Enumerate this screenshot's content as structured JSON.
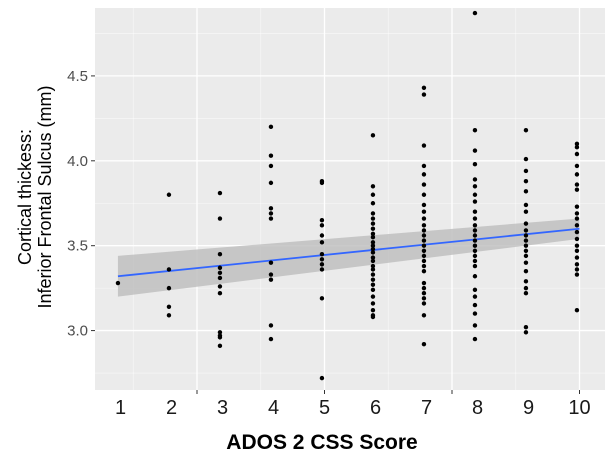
{
  "chart_data": {
    "type": "scatter",
    "title": "",
    "xlabel": "ADOS 2 CSS Score",
    "ylabel_lines": [
      "Cortical thickess:",
      "Inferior Frontal Sulcus (mm)"
    ],
    "xlim": [
      0.5,
      10.5
    ],
    "ylim": [
      2.65,
      4.9
    ],
    "x_ticks": [
      1,
      2,
      3,
      4,
      5,
      6,
      7,
      8,
      9,
      10
    ],
    "y_ticks": [
      "3.0",
      "3.5",
      "4.0",
      "4.5"
    ],
    "grid": true,
    "colors": {
      "panel": "#ebebeb",
      "grid": "#ffffff",
      "points": "#000000",
      "fit_line": "#3366ff",
      "confidence_band": "#bdbdbd"
    },
    "fit": {
      "x": [
        0.95,
        10.0
      ],
      "y": [
        3.32,
        3.6
      ],
      "ci_lower": [
        3.2,
        3.54
      ],
      "ci_upper": [
        3.44,
        3.66
      ]
    },
    "series": [
      {
        "points": [
          [
            0.95,
            3.28
          ],
          [
            1.95,
            3.8
          ],
          [
            1.95,
            3.36
          ],
          [
            1.95,
            3.25
          ],
          [
            1.95,
            3.14
          ],
          [
            1.95,
            3.09
          ],
          [
            2.95,
            3.81
          ],
          [
            2.95,
            3.66
          ],
          [
            2.95,
            3.45
          ],
          [
            2.95,
            3.37
          ],
          [
            2.95,
            3.34
          ],
          [
            2.95,
            3.31
          ],
          [
            2.95,
            3.26
          ],
          [
            2.95,
            3.22
          ],
          [
            2.95,
            2.99
          ],
          [
            2.95,
            2.97
          ],
          [
            2.95,
            2.96
          ],
          [
            2.95,
            2.91
          ],
          [
            3.95,
            4.2
          ],
          [
            3.95,
            4.03
          ],
          [
            3.95,
            3.97
          ],
          [
            3.95,
            3.87
          ],
          [
            3.95,
            3.72
          ],
          [
            3.95,
            3.69
          ],
          [
            3.95,
            3.66
          ],
          [
            3.95,
            3.4
          ],
          [
            3.95,
            3.33
          ],
          [
            3.95,
            3.3
          ],
          [
            3.95,
            3.03
          ],
          [
            3.95,
            2.95
          ],
          [
            4.95,
            3.88
          ],
          [
            4.95,
            3.87
          ],
          [
            4.95,
            3.65
          ],
          [
            4.95,
            3.62
          ],
          [
            4.95,
            3.56
          ],
          [
            4.95,
            3.52
          ],
          [
            4.95,
            3.45
          ],
          [
            4.95,
            3.42
          ],
          [
            4.95,
            3.39
          ],
          [
            4.95,
            3.36
          ],
          [
            4.95,
            3.19
          ],
          [
            4.95,
            2.72
          ],
          [
            5.95,
            4.15
          ],
          [
            5.95,
            3.85
          ],
          [
            5.95,
            3.8
          ],
          [
            5.95,
            3.75
          ],
          [
            5.95,
            3.69
          ],
          [
            5.95,
            3.66
          ],
          [
            5.95,
            3.63
          ],
          [
            5.95,
            3.6
          ],
          [
            5.95,
            3.57
          ],
          [
            5.95,
            3.55
          ],
          [
            5.95,
            3.52
          ],
          [
            5.95,
            3.5
          ],
          [
            5.95,
            3.48
          ],
          [
            5.95,
            3.46
          ],
          [
            5.95,
            3.43
          ],
          [
            5.95,
            3.41
          ],
          [
            5.95,
            3.38
          ],
          [
            5.95,
            3.36
          ],
          [
            5.95,
            3.33
          ],
          [
            5.95,
            3.3
          ],
          [
            5.95,
            3.27
          ],
          [
            5.95,
            3.24
          ],
          [
            5.95,
            3.2
          ],
          [
            5.95,
            3.16
          ],
          [
            5.95,
            3.12
          ],
          [
            5.95,
            3.09
          ],
          [
            5.95,
            3.08
          ],
          [
            6.95,
            4.43
          ],
          [
            6.95,
            4.39
          ],
          [
            6.95,
            4.09
          ],
          [
            6.95,
            3.97
          ],
          [
            6.95,
            3.92
          ],
          [
            6.95,
            3.86
          ],
          [
            6.95,
            3.8
          ],
          [
            6.95,
            3.74
          ],
          [
            6.95,
            3.7
          ],
          [
            6.95,
            3.66
          ],
          [
            6.95,
            3.62
          ],
          [
            6.95,
            3.59
          ],
          [
            6.95,
            3.56
          ],
          [
            6.95,
            3.53
          ],
          [
            6.95,
            3.5
          ],
          [
            6.95,
            3.47
          ],
          [
            6.95,
            3.44
          ],
          [
            6.95,
            3.41
          ],
          [
            6.95,
            3.38
          ],
          [
            6.95,
            3.35
          ],
          [
            6.95,
            3.28
          ],
          [
            6.95,
            3.25
          ],
          [
            6.95,
            3.22
          ],
          [
            6.95,
            3.19
          ],
          [
            6.95,
            3.16
          ],
          [
            6.95,
            3.09
          ],
          [
            6.95,
            2.92
          ],
          [
            7.95,
            4.87
          ],
          [
            7.95,
            4.18
          ],
          [
            7.95,
            4.06
          ],
          [
            7.95,
            3.98
          ],
          [
            7.95,
            3.89
          ],
          [
            7.95,
            3.85
          ],
          [
            7.95,
            3.8
          ],
          [
            7.95,
            3.76
          ],
          [
            7.95,
            3.7
          ],
          [
            7.95,
            3.66
          ],
          [
            7.95,
            3.62
          ],
          [
            7.95,
            3.59
          ],
          [
            7.95,
            3.56
          ],
          [
            7.95,
            3.53
          ],
          [
            7.95,
            3.5
          ],
          [
            7.95,
            3.47
          ],
          [
            7.95,
            3.44
          ],
          [
            7.95,
            3.41
          ],
          [
            7.95,
            3.38
          ],
          [
            7.95,
            3.32
          ],
          [
            7.95,
            3.24
          ],
          [
            7.95,
            3.2
          ],
          [
            7.95,
            3.15
          ],
          [
            7.95,
            3.1
          ],
          [
            7.95,
            3.03
          ],
          [
            7.95,
            2.95
          ],
          [
            8.95,
            4.18
          ],
          [
            8.95,
            4.01
          ],
          [
            8.95,
            3.94
          ],
          [
            8.95,
            3.88
          ],
          [
            8.95,
            3.82
          ],
          [
            8.95,
            3.74
          ],
          [
            8.95,
            3.7
          ],
          [
            8.95,
            3.63
          ],
          [
            8.95,
            3.59
          ],
          [
            8.95,
            3.56
          ],
          [
            8.95,
            3.53
          ],
          [
            8.95,
            3.5
          ],
          [
            8.95,
            3.47
          ],
          [
            8.95,
            3.44
          ],
          [
            8.95,
            3.4
          ],
          [
            8.95,
            3.35
          ],
          [
            8.95,
            3.29
          ],
          [
            8.95,
            3.25
          ],
          [
            8.95,
            3.22
          ],
          [
            8.95,
            3.02
          ],
          [
            8.95,
            2.99
          ],
          [
            9.95,
            4.1
          ],
          [
            9.95,
            4.08
          ],
          [
            9.95,
            4.04
          ],
          [
            9.95,
            3.97
          ],
          [
            9.95,
            3.92
          ],
          [
            9.95,
            3.86
          ],
          [
            9.95,
            3.83
          ],
          [
            9.95,
            3.73
          ],
          [
            9.95,
            3.69
          ],
          [
            9.95,
            3.66
          ],
          [
            9.95,
            3.62
          ],
          [
            9.95,
            3.58
          ],
          [
            9.95,
            3.54
          ],
          [
            9.95,
            3.5
          ],
          [
            9.95,
            3.47
          ],
          [
            9.95,
            3.43
          ],
          [
            9.95,
            3.39
          ],
          [
            9.95,
            3.36
          ],
          [
            9.95,
            3.33
          ],
          [
            9.95,
            3.12
          ]
        ]
      }
    ]
  }
}
